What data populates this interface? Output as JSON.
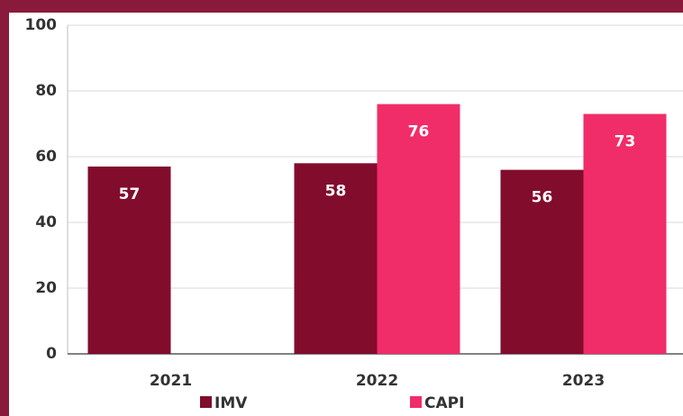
{
  "chart_data": {
    "type": "bar",
    "categories": [
      "2021",
      "2022",
      "2023"
    ],
    "series": [
      {
        "name": "IMV",
        "color": "#820c2c",
        "values": [
          57,
          58,
          56
        ]
      },
      {
        "name": "CAPI",
        "color": "#f02d68",
        "values": [
          null,
          76,
          73
        ]
      }
    ],
    "ylim": [
      0,
      100
    ],
    "yticks": [
      0,
      20,
      40,
      60,
      80,
      100
    ],
    "grid": true,
    "legend": "bottom"
  }
}
